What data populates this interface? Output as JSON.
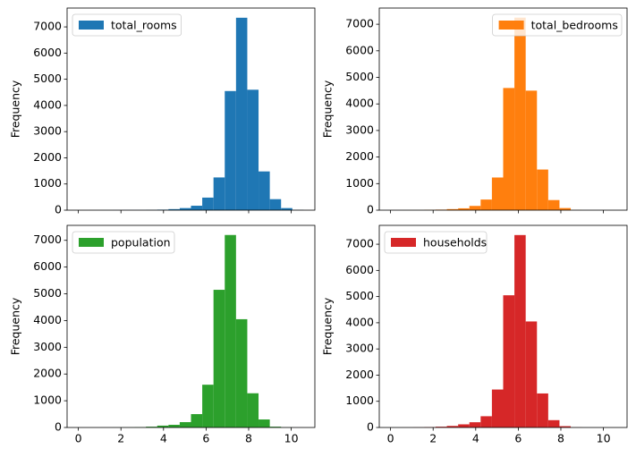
{
  "chart_data": [
    {
      "type": "histogram",
      "ylabel": "Frequency",
      "legend": "upper left",
      "xtick_labels": false,
      "bins": [
        0,
        0.529,
        1.058,
        1.587,
        2.116,
        2.645,
        3.174,
        3.703,
        4.232,
        4.761,
        5.29,
        5.819,
        6.348,
        6.877,
        7.406,
        7.935,
        8.464,
        8.993,
        9.522,
        10.051,
        10.58
      ],
      "series": [
        {
          "name": "total_rooms",
          "color": "#1f77b4",
          "values": [
            0,
            1,
            2,
            3,
            5,
            5,
            10,
            20,
            40,
            80,
            170,
            480,
            1250,
            4550,
            7350,
            4600,
            1480,
            420,
            80,
            10
          ]
        }
      ],
      "xlim": [
        -0.53,
        11.11
      ],
      "xticks": [
        0,
        2,
        4,
        6,
        8,
        10
      ],
      "ylim": [
        0,
        7720
      ],
      "yticks": [
        0,
        1000,
        2000,
        3000,
        4000,
        5000,
        6000,
        7000
      ]
    },
    {
      "type": "histogram",
      "ylabel": "Frequency",
      "legend": "upper right",
      "xtick_labels": false,
      "bins": [
        0,
        0.529,
        1.058,
        1.587,
        2.116,
        2.645,
        3.174,
        3.703,
        4.232,
        4.761,
        5.29,
        5.819,
        6.348,
        6.877,
        7.406,
        7.935,
        8.464,
        8.993,
        9.522,
        10.051,
        10.58
      ],
      "series": [
        {
          "name": "total_bedrooms",
          "color": "#ff7f0e",
          "values": [
            1,
            2,
            3,
            10,
            20,
            40,
            70,
            160,
            400,
            1230,
            4600,
            7250,
            4500,
            1530,
            380,
            80,
            5,
            0,
            0,
            0
          ]
        }
      ],
      "xlim": [
        -0.53,
        11.11
      ],
      "xticks": [
        0,
        2,
        4,
        6,
        8,
        10
      ],
      "ylim": [
        0,
        7610
      ],
      "yticks": [
        0,
        1000,
        2000,
        3000,
        4000,
        5000,
        6000,
        7000
      ]
    },
    {
      "type": "histogram",
      "ylabel": "Frequency",
      "legend": "upper left",
      "xtick_labels": true,
      "bins": [
        0,
        0.529,
        1.058,
        1.587,
        2.116,
        2.645,
        3.174,
        3.703,
        4.232,
        4.761,
        5.29,
        5.819,
        6.348,
        6.877,
        7.406,
        7.935,
        8.464,
        8.993,
        9.522,
        10.051,
        10.58
      ],
      "series": [
        {
          "name": "population",
          "color": "#2ca02c",
          "values": [
            0,
            0,
            1,
            2,
            5,
            10,
            30,
            70,
            100,
            200,
            500,
            1600,
            5150,
            7200,
            4050,
            1280,
            300,
            30,
            5,
            1
          ]
        }
      ],
      "xlim": [
        -0.53,
        11.11
      ],
      "xticks": [
        0,
        2,
        4,
        6,
        8,
        10
      ],
      "ylim": [
        0,
        7560
      ],
      "yticks": [
        0,
        1000,
        2000,
        3000,
        4000,
        5000,
        6000,
        7000
      ]
    },
    {
      "type": "histogram",
      "ylabel": "Frequency",
      "legend": "upper left",
      "xtick_labels": true,
      "bins": [
        0,
        0.529,
        1.058,
        1.587,
        2.116,
        2.645,
        3.174,
        3.703,
        4.232,
        4.761,
        5.29,
        5.819,
        6.348,
        6.877,
        7.406,
        7.935,
        8.464,
        8.993,
        9.522,
        10.051,
        10.58
      ],
      "series": [
        {
          "name": "households",
          "color": "#d62728",
          "values": [
            0,
            1,
            5,
            15,
            30,
            60,
            120,
            200,
            430,
            1450,
            5050,
            7350,
            4050,
            1300,
            280,
            50,
            5,
            0,
            0,
            0
          ]
        }
      ],
      "xlim": [
        -0.53,
        11.11
      ],
      "xticks": [
        0,
        2,
        4,
        6,
        8,
        10
      ],
      "ylim": [
        0,
        7720
      ],
      "yticks": [
        0,
        1000,
        2000,
        3000,
        4000,
        5000,
        6000,
        7000
      ]
    }
  ]
}
